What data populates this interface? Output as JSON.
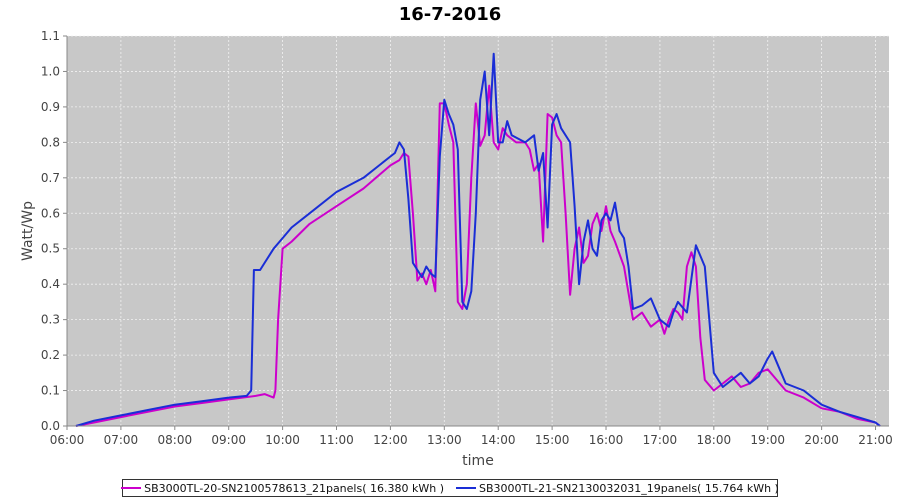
{
  "chart_data": {
    "type": "line",
    "title": "16-7-2016",
    "xlabel": "time",
    "ylabel": "Watt/Wp",
    "xlim": [
      "06:00",
      "21:15"
    ],
    "ylim": [
      0.0,
      1.1
    ],
    "x_ticks": [
      "06:00",
      "07:00",
      "08:00",
      "09:00",
      "10:00",
      "11:00",
      "12:00",
      "13:00",
      "14:00",
      "15:00",
      "16:00",
      "17:00",
      "18:00",
      "19:00",
      "20:00",
      "21:00"
    ],
    "y_ticks": [
      "0.0",
      "0.1",
      "0.2",
      "0.3",
      "0.4",
      "0.5",
      "0.6",
      "0.7",
      "0.8",
      "0.9",
      "1.0",
      "1.1"
    ],
    "grid": true,
    "legend_position": "bottom",
    "plot_background": "#c8c8c8",
    "series": [
      {
        "name": "SB3000TL-20-SN2100578613_21panels( 16.380 kWh )",
        "color": "#cc00cc",
        "points": [
          [
            "06:10",
            0.0
          ],
          [
            "06:30",
            0.01
          ],
          [
            "07:00",
            0.025
          ],
          [
            "07:30",
            0.04
          ],
          [
            "08:00",
            0.055
          ],
          [
            "08:30",
            0.065
          ],
          [
            "09:00",
            0.075
          ],
          [
            "09:30",
            0.085
          ],
          [
            "09:40",
            0.09
          ],
          [
            "09:50",
            0.08
          ],
          [
            "09:52",
            0.1
          ],
          [
            "09:55",
            0.3
          ],
          [
            "10:00",
            0.5
          ],
          [
            "10:10",
            0.52
          ],
          [
            "10:30",
            0.57
          ],
          [
            "11:00",
            0.62
          ],
          [
            "11:30",
            0.67
          ],
          [
            "12:00",
            0.735
          ],
          [
            "12:10",
            0.75
          ],
          [
            "12:15",
            0.77
          ],
          [
            "12:20",
            0.76
          ],
          [
            "12:25",
            0.6
          ],
          [
            "12:30",
            0.41
          ],
          [
            "12:35",
            0.43
          ],
          [
            "12:40",
            0.4
          ],
          [
            "12:45",
            0.44
          ],
          [
            "12:50",
            0.38
          ],
          [
            "12:52",
            0.6
          ],
          [
            "12:55",
            0.91
          ],
          [
            "13:00",
            0.91
          ],
          [
            "13:05",
            0.85
          ],
          [
            "13:10",
            0.8
          ],
          [
            "13:15",
            0.35
          ],
          [
            "13:20",
            0.33
          ],
          [
            "13:25",
            0.4
          ],
          [
            "13:30",
            0.7
          ],
          [
            "13:35",
            0.91
          ],
          [
            "13:40",
            0.79
          ],
          [
            "13:45",
            0.82
          ],
          [
            "13:50",
            0.96
          ],
          [
            "13:55",
            0.8
          ],
          [
            "14:00",
            0.78
          ],
          [
            "14:05",
            0.84
          ],
          [
            "14:10",
            0.82
          ],
          [
            "14:20",
            0.8
          ],
          [
            "14:30",
            0.8
          ],
          [
            "14:35",
            0.78
          ],
          [
            "14:40",
            0.72
          ],
          [
            "14:45",
            0.74
          ],
          [
            "14:50",
            0.52
          ],
          [
            "14:55",
            0.88
          ],
          [
            "15:00",
            0.87
          ],
          [
            "15:05",
            0.82
          ],
          [
            "15:10",
            0.8
          ],
          [
            "15:15",
            0.6
          ],
          [
            "15:20",
            0.37
          ],
          [
            "15:25",
            0.5
          ],
          [
            "15:30",
            0.56
          ],
          [
            "15:35",
            0.46
          ],
          [
            "15:40",
            0.48
          ],
          [
            "15:45",
            0.57
          ],
          [
            "15:50",
            0.6
          ],
          [
            "15:55",
            0.55
          ],
          [
            "16:00",
            0.62
          ],
          [
            "16:05",
            0.55
          ],
          [
            "16:10",
            0.52
          ],
          [
            "16:20",
            0.45
          ],
          [
            "16:30",
            0.3
          ],
          [
            "16:40",
            0.32
          ],
          [
            "16:50",
            0.28
          ],
          [
            "17:00",
            0.3
          ],
          [
            "17:05",
            0.26
          ],
          [
            "17:10",
            0.3
          ],
          [
            "17:15",
            0.33
          ],
          [
            "17:20",
            0.32
          ],
          [
            "17:25",
            0.3
          ],
          [
            "17:30",
            0.45
          ],
          [
            "17:35",
            0.49
          ],
          [
            "17:40",
            0.45
          ],
          [
            "17:45",
            0.25
          ],
          [
            "17:50",
            0.13
          ],
          [
            "18:00",
            0.1
          ],
          [
            "18:10",
            0.12
          ],
          [
            "18:20",
            0.14
          ],
          [
            "18:30",
            0.11
          ],
          [
            "18:40",
            0.12
          ],
          [
            "18:50",
            0.15
          ],
          [
            "19:00",
            0.16
          ],
          [
            "19:10",
            0.13
          ],
          [
            "19:20",
            0.1
          ],
          [
            "19:40",
            0.08
          ],
          [
            "20:00",
            0.05
          ],
          [
            "20:20",
            0.04
          ],
          [
            "20:40",
            0.02
          ],
          [
            "21:00",
            0.01
          ],
          [
            "21:05",
            0.0
          ]
        ]
      },
      {
        "name": "SB3000TL-21-SN2130032031_19panels( 15.764 kWh )",
        "color": "#1a2ed6",
        "points": [
          [
            "06:10",
            0.0
          ],
          [
            "06:30",
            0.015
          ],
          [
            "07:00",
            0.03
          ],
          [
            "07:30",
            0.045
          ],
          [
            "08:00",
            0.06
          ],
          [
            "08:30",
            0.07
          ],
          [
            "09:00",
            0.08
          ],
          [
            "09:20",
            0.085
          ],
          [
            "09:25",
            0.1
          ],
          [
            "09:28",
            0.44
          ],
          [
            "09:35",
            0.44
          ],
          [
            "09:40",
            0.46
          ],
          [
            "09:50",
            0.5
          ],
          [
            "10:00",
            0.53
          ],
          [
            "10:10",
            0.56
          ],
          [
            "10:30",
            0.6
          ],
          [
            "11:00",
            0.66
          ],
          [
            "11:30",
            0.7
          ],
          [
            "11:50",
            0.74
          ],
          [
            "12:00",
            0.76
          ],
          [
            "12:05",
            0.77
          ],
          [
            "12:10",
            0.8
          ],
          [
            "12:15",
            0.78
          ],
          [
            "12:20",
            0.64
          ],
          [
            "12:25",
            0.46
          ],
          [
            "12:30",
            0.44
          ],
          [
            "12:35",
            0.42
          ],
          [
            "12:40",
            0.45
          ],
          [
            "12:45",
            0.43
          ],
          [
            "12:50",
            0.42
          ],
          [
            "12:55",
            0.76
          ],
          [
            "13:00",
            0.92
          ],
          [
            "13:05",
            0.88
          ],
          [
            "13:10",
            0.85
          ],
          [
            "13:15",
            0.78
          ],
          [
            "13:20",
            0.35
          ],
          [
            "13:25",
            0.33
          ],
          [
            "13:30",
            0.38
          ],
          [
            "13:35",
            0.6
          ],
          [
            "13:40",
            0.92
          ],
          [
            "13:45",
            1.0
          ],
          [
            "13:50",
            0.82
          ],
          [
            "13:55",
            1.05
          ],
          [
            "14:00",
            0.8
          ],
          [
            "14:05",
            0.8
          ],
          [
            "14:10",
            0.86
          ],
          [
            "14:15",
            0.82
          ],
          [
            "14:30",
            0.8
          ],
          [
            "14:40",
            0.82
          ],
          [
            "14:45",
            0.72
          ],
          [
            "14:50",
            0.77
          ],
          [
            "14:55",
            0.56
          ],
          [
            "15:00",
            0.85
          ],
          [
            "15:05",
            0.88
          ],
          [
            "15:10",
            0.84
          ],
          [
            "15:20",
            0.8
          ],
          [
            "15:25",
            0.62
          ],
          [
            "15:30",
            0.4
          ],
          [
            "15:35",
            0.52
          ],
          [
            "15:40",
            0.58
          ],
          [
            "15:45",
            0.5
          ],
          [
            "15:50",
            0.48
          ],
          [
            "15:55",
            0.58
          ],
          [
            "16:00",
            0.6
          ],
          [
            "16:05",
            0.58
          ],
          [
            "16:10",
            0.63
          ],
          [
            "16:15",
            0.55
          ],
          [
            "16:20",
            0.53
          ],
          [
            "16:25",
            0.45
          ],
          [
            "16:30",
            0.33
          ],
          [
            "16:40",
            0.34
          ],
          [
            "16:50",
            0.36
          ],
          [
            "17:00",
            0.3
          ],
          [
            "17:10",
            0.28
          ],
          [
            "17:15",
            0.32
          ],
          [
            "17:20",
            0.35
          ],
          [
            "17:30",
            0.32
          ],
          [
            "17:40",
            0.51
          ],
          [
            "17:45",
            0.48
          ],
          [
            "17:50",
            0.45
          ],
          [
            "18:00",
            0.15
          ],
          [
            "18:10",
            0.11
          ],
          [
            "18:20",
            0.13
          ],
          [
            "18:30",
            0.15
          ],
          [
            "18:40",
            0.12
          ],
          [
            "18:50",
            0.14
          ],
          [
            "19:00",
            0.19
          ],
          [
            "19:05",
            0.21
          ],
          [
            "19:10",
            0.18
          ],
          [
            "19:20",
            0.12
          ],
          [
            "19:40",
            0.1
          ],
          [
            "20:00",
            0.06
          ],
          [
            "20:20",
            0.04
          ],
          [
            "20:40",
            0.025
          ],
          [
            "21:00",
            0.01
          ],
          [
            "21:05",
            0.0
          ]
        ]
      }
    ]
  }
}
